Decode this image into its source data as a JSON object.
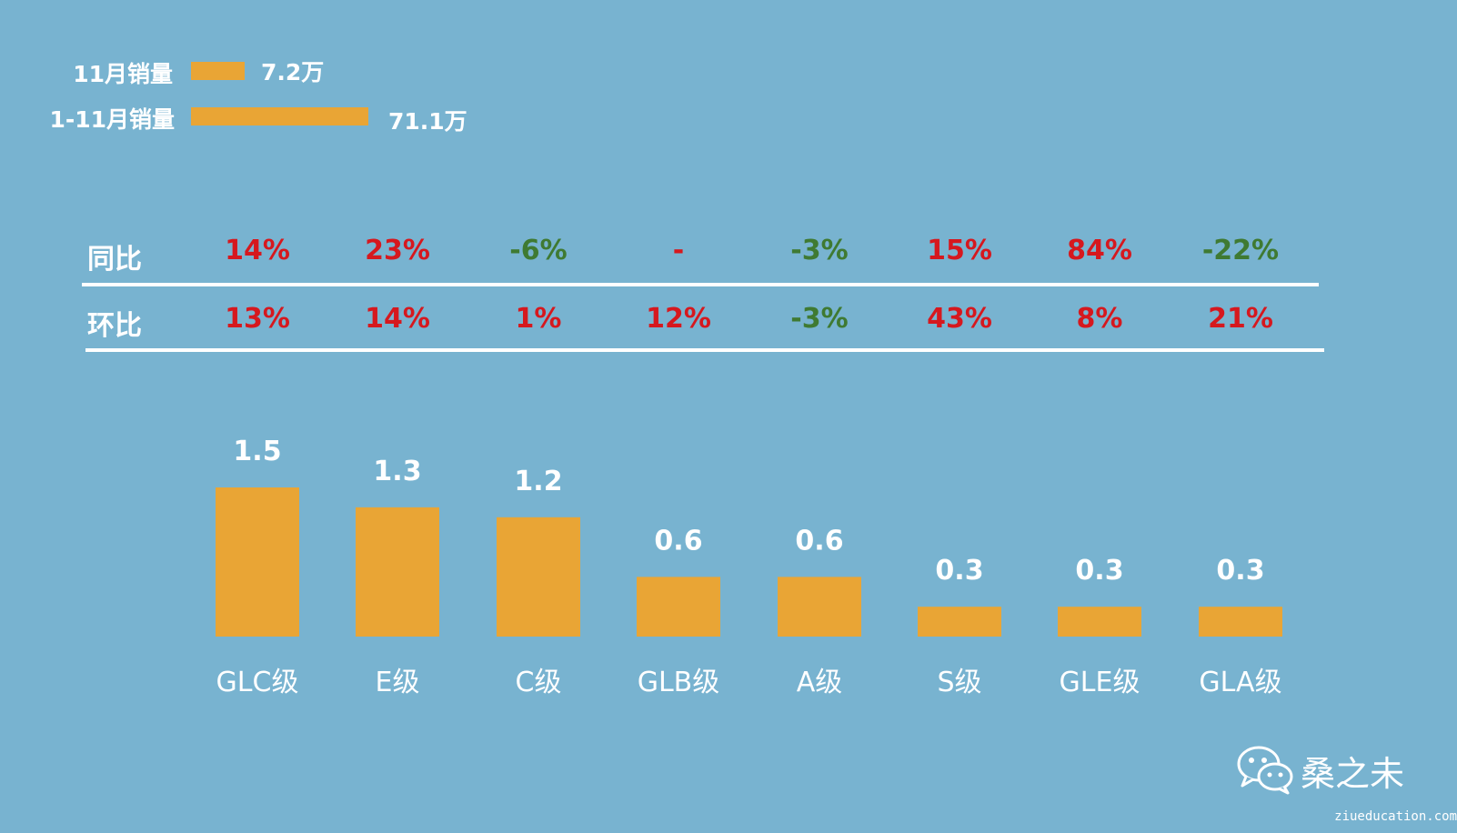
{
  "legend": {
    "month_label": "11月销量",
    "month_value": "7.2万",
    "month_amount": 7.2,
    "ytd_label": "1-11月销量",
    "ytd_value": "71.1万",
    "ytd_amount": 71.1
  },
  "table": {
    "yoy_label": "同比",
    "mom_label": "环比",
    "yoy": [
      "14%",
      "23%",
      "-6%",
      "-",
      "-3%",
      "15%",
      "84%",
      "-22%"
    ],
    "mom": [
      "13%",
      "14%",
      "1%",
      "12%",
      "-3%",
      "43%",
      "8%",
      "21%"
    ]
  },
  "chart_data": {
    "type": "bar",
    "categories": [
      "GLC级",
      "E级",
      "C级",
      "GLB级",
      "A级",
      "S级",
      "GLE级",
      "GLA级"
    ],
    "values": [
      1.5,
      1.3,
      1.2,
      0.6,
      0.6,
      0.3,
      0.3,
      0.3
    ],
    "title": "",
    "xlabel": "",
    "ylabel": "",
    "grid": false,
    "ylim": [
      0,
      1.5
    ]
  },
  "colors": {
    "background": "#78B3D0",
    "bar": "#E9A535",
    "positive": "#D6181E",
    "negative": "#3F7A32",
    "text": "#FFFFFF"
  },
  "brand": {
    "icon": "wechat-icon",
    "name": "桑之未",
    "site": "ziueducation.com"
  }
}
